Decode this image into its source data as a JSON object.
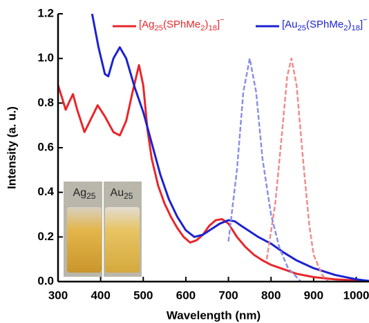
{
  "chart_data": {
    "type": "line",
    "xlabel": "Wavelength (nm)",
    "ylabel": "Intensity (a. u.)",
    "xlim": [
      300,
      1030
    ],
    "xticks": [
      300,
      400,
      500,
      600,
      700,
      800,
      900,
      1000
    ],
    "ylim": [
      0,
      1.2
    ],
    "yticks": [
      {
        "value": 0,
        "label": "0.0"
      },
      0.2,
      0.4,
      0.6,
      0.8,
      {
        "value": 1,
        "label": "1.0"
      },
      1.2
    ],
    "legend": "top-right",
    "annotations": [
      "Ag25",
      "Au25"
    ],
    "series": [
      {
        "name": "[Ag25(SPhMe2)18]−",
        "color": "#e8262a",
        "dash": false,
        "x": [
          300,
          310,
          318,
          325,
          335,
          345,
          362,
          375,
          393,
          410,
          430,
          445,
          460,
          475,
          490,
          500,
          510,
          520,
          535,
          550,
          565,
          580,
          595,
          610,
          625,
          640,
          655,
          670,
          685,
          700,
          720,
          740,
          760,
          780,
          800,
          830,
          860,
          900,
          950,
          1000,
          1030
        ],
        "values": [
          0.88,
          0.82,
          0.77,
          0.8,
          0.84,
          0.77,
          0.67,
          0.72,
          0.79,
          0.74,
          0.67,
          0.655,
          0.72,
          0.85,
          0.97,
          0.88,
          0.68,
          0.55,
          0.43,
          0.35,
          0.29,
          0.24,
          0.2,
          0.175,
          0.185,
          0.21,
          0.25,
          0.275,
          0.28,
          0.26,
          0.2,
          0.155,
          0.12,
          0.095,
          0.075,
          0.055,
          0.035,
          0.02,
          0.01,
          0.005,
          0
        ]
      },
      {
        "name": "[Au25(SPhMe2)18]−",
        "color": "#1c22d0",
        "dash": false,
        "x": [
          380,
          395,
          410,
          418,
          430,
          445,
          460,
          480,
          500,
          520,
          540,
          560,
          580,
          600,
          620,
          640,
          660,
          680,
          700,
          715,
          730,
          750,
          770,
          800,
          830,
          860,
          900,
          950,
          1000,
          1030
        ],
        "values": [
          1.2,
          1.05,
          0.93,
          0.92,
          1.0,
          1.05,
          1.0,
          0.87,
          0.76,
          0.62,
          0.48,
          0.37,
          0.29,
          0.23,
          0.2,
          0.21,
          0.235,
          0.26,
          0.275,
          0.27,
          0.25,
          0.225,
          0.2,
          0.17,
          0.13,
          0.095,
          0.06,
          0.03,
          0.01,
          0.003
        ]
      },
      {
        "color": "#f08c8c",
        "dash": true,
        "x": [
          790,
          810,
          825,
          838,
          848,
          860,
          875,
          890,
          900,
          920,
          935
        ],
        "values": [
          0.1,
          0.35,
          0.65,
          0.92,
          1.0,
          0.88,
          0.55,
          0.25,
          0.12,
          0.03,
          0
        ]
      },
      {
        "color": "#8a8fe8",
        "dash": true,
        "x": [
          700,
          720,
          735,
          750,
          765,
          780,
          800,
          820,
          840,
          860,
          870
        ],
        "values": [
          0.18,
          0.5,
          0.85,
          1.0,
          0.85,
          0.55,
          0.3,
          0.15,
          0.06,
          0.02,
          0
        ]
      }
    ]
  }
}
